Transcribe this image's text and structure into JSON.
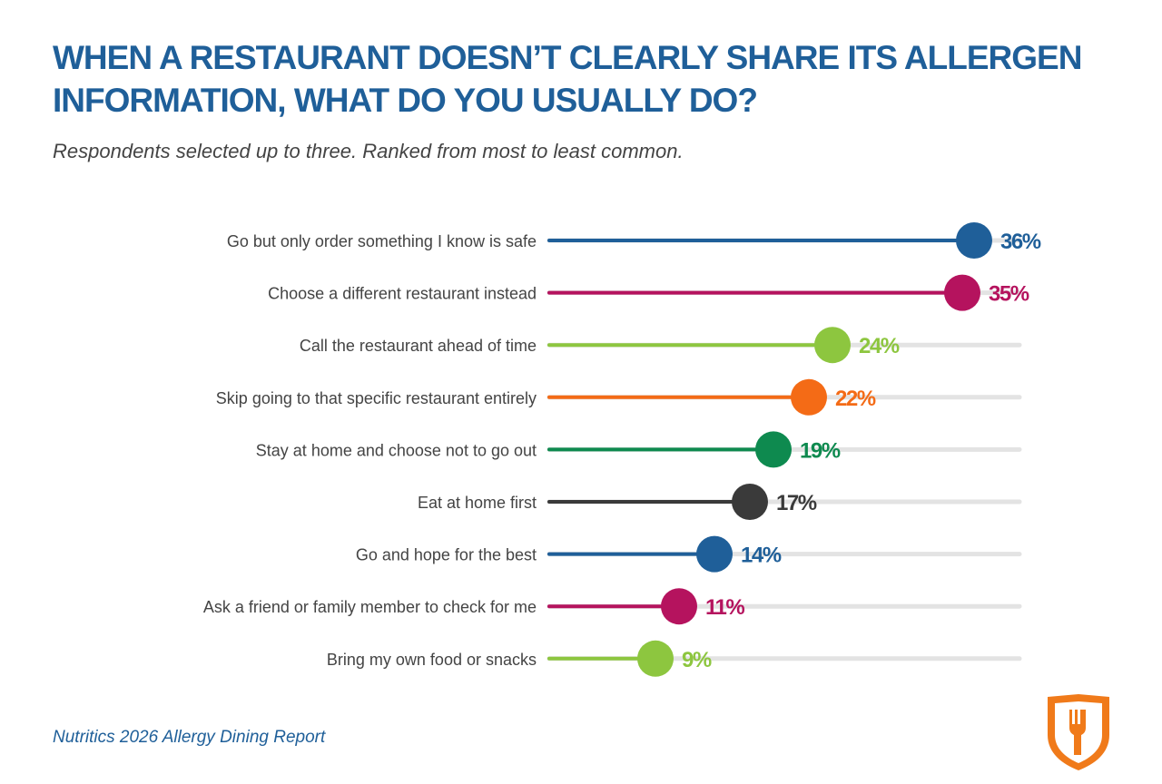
{
  "title": "WHEN A RESTAURANT DOESN’T CLEARLY SHARE ITS ALLERGEN INFORMATION, WHAT DO YOU USUALLY DO?",
  "subtitle": "Respondents selected up to three. Ranked from most to least common.",
  "footer": "Nutritics 2026 Allergy Dining Report",
  "logo_icon": "fork-shield-icon",
  "colors": {
    "title": "#1f5f99",
    "track": "#e3e3e3",
    "logo": "#f07a1a"
  },
  "chart_data": {
    "type": "lollipop",
    "title": "WHEN A RESTAURANT DOESN’T CLEARLY SHARE ITS ALLERGEN INFORMATION, WHAT DO YOU USUALLY DO?",
    "xlim": [
      0,
      40
    ],
    "value_suffix": "%",
    "grid": false,
    "categories": [
      "Go but only order something I know is safe",
      "Choose a different restaurant instead",
      "Call the restaurant ahead of time",
      "Skip going to that specific restaurant entirely",
      "Stay at home and choose not to go out",
      "Eat at home first",
      "Go and hope for the best",
      "Ask a friend or family member to check for me",
      "Bring my own food or snacks"
    ],
    "values": [
      36,
      35,
      24,
      22,
      19,
      17,
      14,
      11,
      9
    ],
    "labels": [
      "36%",
      "35%",
      "24%",
      "22%",
      "19%",
      "17%",
      "14%",
      "11%",
      "9%"
    ],
    "colors": [
      "#1f5f99",
      "#b5135e",
      "#8dc63f",
      "#f46b16",
      "#0e8a4f",
      "#3a3a3a",
      "#1f5f99",
      "#b5135e",
      "#8dc63f"
    ]
  }
}
